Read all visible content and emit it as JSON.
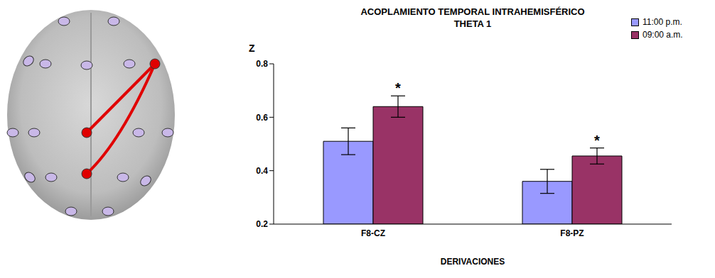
{
  "chart_data": {
    "type": "bar",
    "title": "ACOPLAMIENTO TEMPORAL INTRAHEMISFÉRICO",
    "subtitle": "THETA 1",
    "y_label": "Z",
    "x_label": "DERIVACIONES",
    "categories": [
      "F8-CZ",
      "F8-PZ"
    ],
    "series": [
      {
        "name": "11:00 p.m.",
        "color": "#9999ff",
        "values": [
          0.51,
          0.36
        ],
        "errors": [
          0.05,
          0.045
        ]
      },
      {
        "name": "09:00 a.m.",
        "color": "#993366",
        "values": [
          0.64,
          0.455
        ],
        "errors": [
          0.04,
          0.03
        ]
      }
    ],
    "ylim": [
      0.2,
      0.8
    ],
    "yticks": [
      0.2,
      0.4,
      0.6,
      0.8
    ],
    "grid": false,
    "legend": "top right",
    "annotations": [
      {
        "text": "*",
        "category": "F8-CZ",
        "series": "09:00 a.m."
      },
      {
        "text": "*",
        "category": "F8-PZ",
        "series": "09:00 a.m."
      }
    ]
  }
}
